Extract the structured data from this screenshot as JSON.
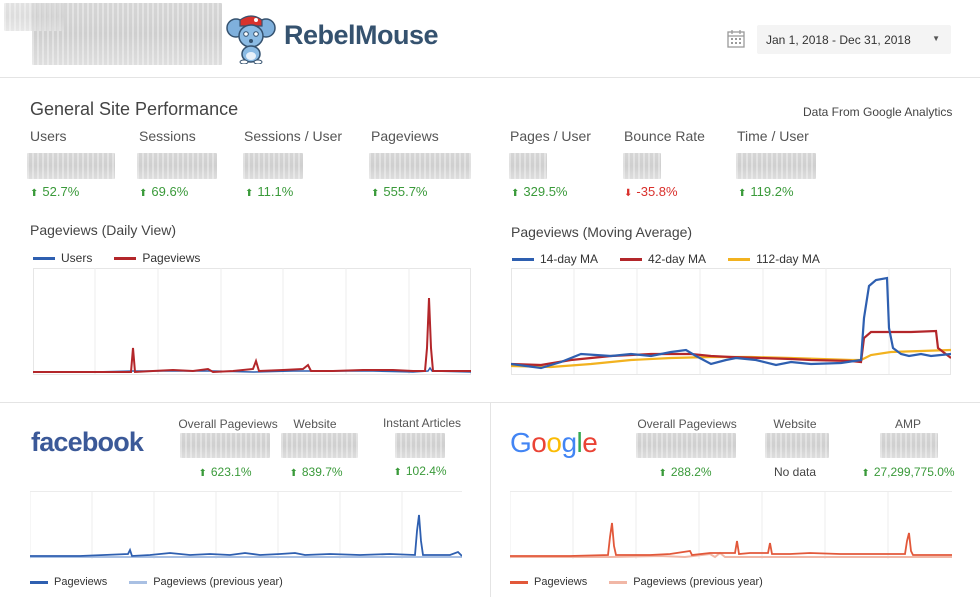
{
  "header": {
    "brand_part1": "Rebel",
    "brand_part2": "Mouse",
    "date_range": "Jan 1, 2018 - Dec 31, 2018",
    "brand_color": "#35526f"
  },
  "general": {
    "title": "General Site Performance",
    "source": "Data From Google Analytics",
    "metrics": [
      {
        "label": "Users",
        "delta": "52.7%",
        "direction": "up"
      },
      {
        "label": "Sessions",
        "delta": "69.6%",
        "direction": "up"
      },
      {
        "label": "Sessions / User",
        "delta": "11.1%",
        "direction": "up"
      },
      {
        "label": "Pageviews",
        "delta": "555.7%",
        "direction": "up"
      },
      {
        "label": "Pages / User",
        "delta": "329.5%",
        "direction": "up"
      },
      {
        "label": "Bounce Rate",
        "delta": "-35.8%",
        "direction": "down"
      },
      {
        "label": "Time / User",
        "delta": "119.2%",
        "direction": "up"
      }
    ],
    "daily_chart": {
      "title": "Pageviews (Daily View)",
      "legend": [
        {
          "label": "Users",
          "color": "#2e5fb0"
        },
        {
          "label": "Pageviews",
          "color": "#b3262a"
        }
      ]
    },
    "ma_chart": {
      "title": "Pageviews (Moving Average)",
      "legend": [
        {
          "label": "14-day MA",
          "color": "#2e5fb0"
        },
        {
          "label": "42-day MA",
          "color": "#b3262a"
        },
        {
          "label": "112-day MA",
          "color": "#f2b21f"
        }
      ]
    }
  },
  "facebook": {
    "logo": "facebook",
    "labels": {
      "overall": "Overall Pageviews",
      "website": "Website",
      "instant": "Instant Articles"
    },
    "deltas": {
      "overall": "623.1%",
      "website": "839.7%",
      "instant": "102.4%"
    },
    "legend": [
      {
        "label": "Pageviews",
        "color": "#2e5fb0"
      },
      {
        "label": "Pageviews (previous year)",
        "color": "#a9c0e3"
      }
    ]
  },
  "google": {
    "logo": "Google",
    "labels": {
      "overall": "Overall Pageviews",
      "website": "Website",
      "amp": "AMP"
    },
    "deltas": {
      "overall": "288.2%",
      "amp": "27,299,775.0%"
    },
    "website_value": "No data",
    "legend": [
      {
        "label": "Pageviews",
        "color": "#e2583a"
      },
      {
        "label": "Pageviews (previous year)",
        "color": "#f1b7a6"
      }
    ]
  }
}
